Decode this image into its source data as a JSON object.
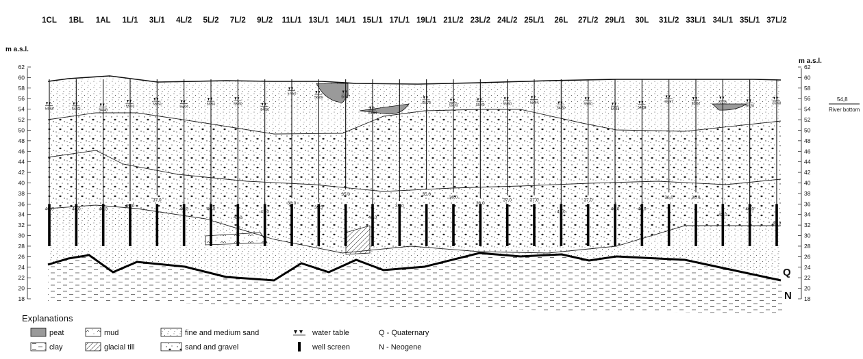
{
  "diagram": {
    "axis_title_left": "m a.s.l.",
    "axis_title_right": "m a.s.l.",
    "elevation_ticks": [
      "62",
      "60",
      "58",
      "56",
      "54",
      "52",
      "50",
      "48",
      "46",
      "44",
      "42",
      "40",
      "38",
      "36",
      "34",
      "32",
      "30",
      "28",
      "26",
      "24",
      "22",
      "20",
      "18"
    ],
    "river_bottom": {
      "value": "54,8",
      "label": "River bottom"
    },
    "boundary_labels": {
      "quaternary": "Q",
      "neogene": "N"
    },
    "wells": [
      {
        "name": "1CL",
        "depth": "40,0",
        "wt": "54,68"
      },
      {
        "name": "1BL",
        "depth": "40,0",
        "wt": "54,62"
      },
      {
        "name": "1AL",
        "depth": "40,0",
        "wt": "54,40"
      },
      {
        "name": "1L/1",
        "depth": "39,0",
        "wt": "55,10"
      },
      {
        "name": "3L/1",
        "depth": "37,0",
        "wt": "55,50"
      },
      {
        "name": "4L/2",
        "depth": "40,0",
        "wt": "55,04"
      },
      {
        "name": "5L/2",
        "depth": "40,0",
        "wt": "55,50"
      },
      {
        "name": "7L/2",
        "depth": "43,0",
        "wt": "55,60"
      },
      {
        "name": "9L/2",
        "depth": "41,0",
        "wt": "54,50"
      },
      {
        "name": "11L/1",
        "depth": "38,0",
        "wt": "57,50"
      },
      {
        "name": "13L/1",
        "depth": "39,5",
        "wt": "56,80"
      },
      {
        "name": "14L/1",
        "depth": "35,0",
        "wt": "56,87"
      },
      {
        "name": "15L/1",
        "depth": "43,0",
        "wt": "53,84"
      },
      {
        "name": "17L/1",
        "depth": "39,0",
        "wt": ""
      },
      {
        "name": "19L/1",
        "depth": "35,0",
        "wt": "55,78"
      },
      {
        "name": "21L/2",
        "depth": "36,0",
        "wt": "55,30"
      },
      {
        "name": "23L/2",
        "depth": "38,0",
        "wt": "55,40"
      },
      {
        "name": "24L/2",
        "depth": "37,0",
        "wt": "55,60"
      },
      {
        "name": "25L/1",
        "depth": "37,0",
        "wt": "55,84"
      },
      {
        "name": "26L",
        "depth": "41,0",
        "wt": "54,80"
      },
      {
        "name": "27L/2",
        "depth": "37,0",
        "wt": "55,60"
      },
      {
        "name": "29L/1",
        "depth": "40,0",
        "wt": "54,58"
      },
      {
        "name": "30L",
        "depth": "40,0",
        "wt": "54,88"
      },
      {
        "name": "31L/2",
        "depth": "36,0",
        "wt": "55,97"
      },
      {
        "name": "33L/1",
        "depth": "36,0",
        "wt": "55,62"
      },
      {
        "name": "34L/1",
        "depth": "42,0",
        "wt": "55,72"
      },
      {
        "name": "35L/1",
        "depth": "40,0",
        "wt": "55,20"
      },
      {
        "name": "37L/2",
        "depth": "45,0",
        "wt": "55,68"
      }
    ]
  },
  "legend": {
    "title": "Explanations",
    "items": [
      {
        "key": "peat",
        "label": "peat"
      },
      {
        "key": "mud",
        "label": "mud"
      },
      {
        "key": "fine_sand",
        "label": "fine and medium sand"
      },
      {
        "key": "water_table",
        "label": "water table"
      },
      {
        "key": "quaternary",
        "label": "Q - Quaternary"
      },
      {
        "key": "clay",
        "label": "clay"
      },
      {
        "key": "glacial_till",
        "label": "glacial till"
      },
      {
        "key": "sand_gravel",
        "label": "sand and gravel"
      },
      {
        "key": "well_screen",
        "label": "well screen"
      },
      {
        "key": "neogene",
        "label": "N - Neogene"
      }
    ]
  }
}
